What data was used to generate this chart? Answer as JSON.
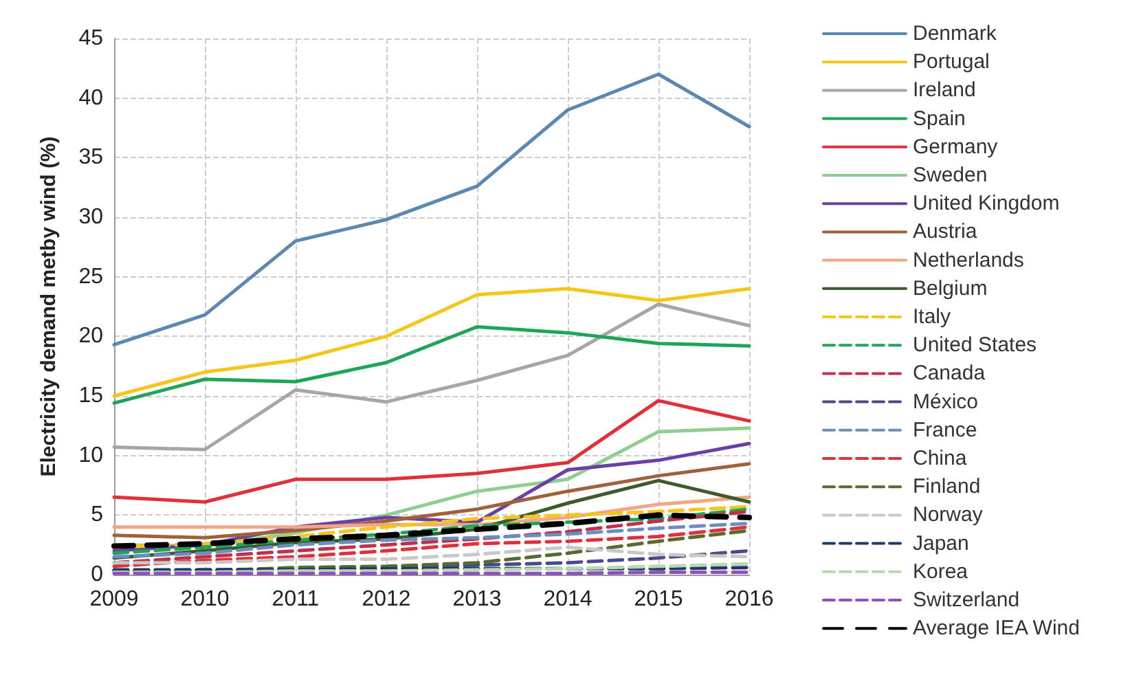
{
  "chart_data": {
    "type": "line",
    "ylabel": "Electricity demand metby wind (%)",
    "categories": [
      "2009",
      "2010",
      "2011",
      "2012",
      "2013",
      "2014",
      "2015",
      "2016"
    ],
    "ylim": [
      0,
      45
    ],
    "yticks": [
      0,
      5,
      10,
      15,
      20,
      25,
      30,
      35,
      40,
      45
    ],
    "grid": true,
    "legend": "right",
    "marker": "none",
    "series": [
      {
        "name": "Denmark",
        "color": "#5b88b0",
        "line_style": "solid",
        "values": [
          19.3,
          21.8,
          28,
          29.8,
          32.6,
          39,
          42,
          37.6
        ]
      },
      {
        "name": "Portugal",
        "color": "#f5c518",
        "line_style": "solid",
        "values": [
          15,
          17,
          18,
          20,
          23.5,
          24,
          23,
          24
        ]
      },
      {
        "name": "Ireland",
        "color": "#a6a6a6",
        "line_style": "solid",
        "values": [
          10.7,
          10.5,
          15.5,
          14.5,
          16.3,
          18.4,
          22.7,
          20.9
        ]
      },
      {
        "name": "Spain",
        "color": "#1fa55a",
        "line_style": "solid",
        "values": [
          14.4,
          16.4,
          16.2,
          17.8,
          20.8,
          20.3,
          19.4,
          19.2
        ]
      },
      {
        "name": "Germany",
        "color": "#e0303a",
        "line_style": "solid",
        "values": [
          6.5,
          6.1,
          8,
          8,
          8.5,
          9.4,
          14.6,
          12.9
        ]
      },
      {
        "name": "Sweden",
        "color": "#8fce8f",
        "line_style": "solid",
        "values": [
          2.5,
          2.4,
          3.5,
          5,
          7,
          8,
          12,
          12.3
        ]
      },
      {
        "name": "United Kingdom",
        "color": "#6a3fa8",
        "line_style": "solid",
        "values": [
          2,
          2.5,
          4,
          4.8,
          4.4,
          8.8,
          9.6,
          11
        ]
      },
      {
        "name": "Austria",
        "color": "#a0603a",
        "line_style": "solid",
        "values": [
          3.3,
          3.1,
          3.7,
          4.5,
          5.5,
          7,
          8.3,
          9.3
        ]
      },
      {
        "name": "Netherlands",
        "color": "#f4a582",
        "line_style": "solid",
        "values": [
          4,
          4,
          4,
          4.2,
          4.2,
          4.8,
          5.9,
          6.5
        ]
      },
      {
        "name": "Belgium",
        "color": "#3d5a2a",
        "line_style": "solid",
        "values": [
          1.4,
          2,
          2.7,
          3,
          3.8,
          6,
          7.9,
          6.1
        ]
      },
      {
        "name": "Italy",
        "color": "#f5c518",
        "line_style": "dashed",
        "values": [
          2.3,
          2.6,
          3.2,
          4,
          4.7,
          5,
          5.3,
          5.7
        ]
      },
      {
        "name": "United States",
        "color": "#1fa55a",
        "line_style": "dashed",
        "values": [
          1.8,
          2.3,
          2.9,
          3.4,
          4.1,
          4.4,
          4.7,
          5.5
        ]
      },
      {
        "name": "Canada",
        "color": "#c0304a",
        "line_style": "dashed",
        "values": [
          1,
          1.5,
          2,
          2.5,
          3,
          3.6,
          4.5,
          5.3
        ]
      },
      {
        "name": "México",
        "color": "#4a4a8a",
        "line_style": "dashed",
        "values": [
          0.3,
          0.4,
          0.5,
          0.6,
          0.8,
          1,
          1.4,
          2
        ]
      },
      {
        "name": "France",
        "color": "#6c8ebf",
        "line_style": "dashed",
        "values": [
          1.5,
          1.8,
          2.5,
          2.9,
          3.1,
          3.4,
          3.9,
          4.3
        ]
      },
      {
        "name": "China",
        "color": "#e0303a",
        "line_style": "dashed",
        "values": [
          0.7,
          1.2,
          1.5,
          2,
          2.6,
          2.8,
          3.2,
          4
        ]
      },
      {
        "name": "Finland",
        "color": "#556b2f",
        "line_style": "dashed",
        "values": [
          0.3,
          0.3,
          0.6,
          0.7,
          1,
          1.8,
          2.8,
          3.7
        ]
      },
      {
        "name": "Norway",
        "color": "#c8c8c8",
        "line_style": "dashed",
        "values": [
          1,
          1,
          1.3,
          1.3,
          1.7,
          2.3,
          1.7,
          1.5
        ]
      },
      {
        "name": "Japan",
        "color": "#1f3a6a",
        "line_style": "dashed",
        "values": [
          0.4,
          0.4,
          0.4,
          0.5,
          0.5,
          0.5,
          0.5,
          0.6
        ]
      },
      {
        "name": "Korea",
        "color": "#b8d8b0",
        "line_style": "dashed",
        "values": [
          0.2,
          0.2,
          0.3,
          0.3,
          0.4,
          0.5,
          0.7,
          0.9
        ]
      },
      {
        "name": "Switzerland",
        "color": "#9050c0",
        "line_style": "dashed",
        "values": [
          0.1,
          0.1,
          0.1,
          0.1,
          0.1,
          0.1,
          0.2,
          0.2
        ]
      },
      {
        "name": "Average IEA Wind",
        "color": "#000000",
        "line_style": "dashed",
        "values": [
          2.4,
          2.6,
          3,
          3.3,
          3.8,
          4.3,
          5,
          4.8
        ]
      }
    ]
  }
}
